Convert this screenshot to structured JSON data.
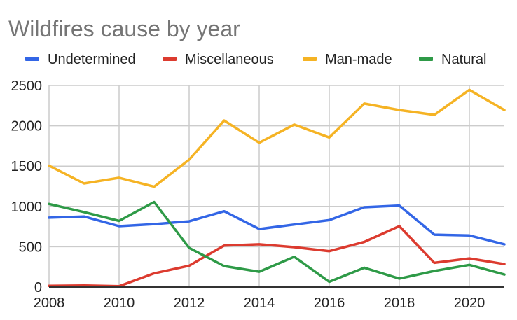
{
  "chart_data": {
    "type": "line",
    "title": "Wildfires cause by year",
    "xlabel": "",
    "ylabel": "",
    "x": [
      2008,
      2009,
      2010,
      2011,
      2012,
      2013,
      2014,
      2015,
      2016,
      2017,
      2018,
      2019,
      2020,
      2021
    ],
    "xlim": [
      2008,
      2021
    ],
    "ylim": [
      0,
      2500
    ],
    "x_ticks": [
      2008,
      2010,
      2012,
      2014,
      2016,
      2018,
      2020
    ],
    "y_ticks": [
      0,
      500,
      1000,
      1500,
      2000,
      2500
    ],
    "grid": true,
    "legend_position": "top",
    "series": [
      {
        "name": "Undetermined",
        "color": "#3366e6",
        "values": [
          860,
          875,
          755,
          780,
          815,
          940,
          720,
          775,
          830,
          990,
          1010,
          650,
          640,
          530
        ]
      },
      {
        "name": "Miscellaneous",
        "color": "#dc3b2f",
        "values": [
          15,
          20,
          10,
          170,
          265,
          515,
          530,
          495,
          445,
          560,
          755,
          300,
          355,
          285
        ]
      },
      {
        "name": "Man-made",
        "color": "#f5b324",
        "values": [
          1505,
          1285,
          1355,
          1245,
          1580,
          2065,
          1790,
          2015,
          1855,
          2275,
          2195,
          2135,
          2445,
          2195
        ]
      },
      {
        "name": "Natural",
        "color": "#2e9a47",
        "values": [
          1030,
          930,
          820,
          1055,
          485,
          260,
          190,
          375,
          65,
          240,
          105,
          200,
          275,
          155
        ]
      }
    ]
  }
}
